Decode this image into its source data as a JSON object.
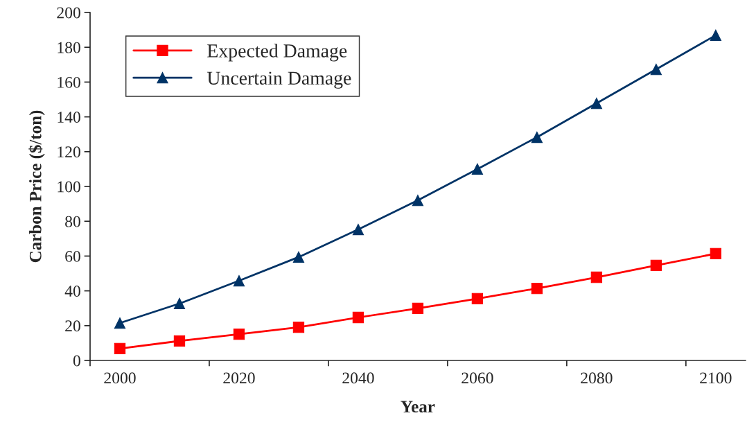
{
  "chart_data": {
    "type": "line",
    "xlabel": "Year",
    "ylabel": "Carbon Price ($/ton)",
    "categories": [
      "2000",
      null,
      "2020",
      null,
      "2040",
      null,
      "2060",
      null,
      "2080",
      null,
      "2100"
    ],
    "series": [
      {
        "name": "Expected Damage",
        "color": "#ff0000",
        "marker": "square",
        "values": [
          6.8,
          11.2,
          15.1,
          19.1,
          24.7,
          29.9,
          35.5,
          41.4,
          47.8,
          54.6,
          61.4
        ]
      },
      {
        "name": "Uncertain Damage",
        "color": "#003366",
        "marker": "triangle",
        "values": [
          21.5,
          32.7,
          45.8,
          59.4,
          75.3,
          92,
          110,
          128.3,
          147.8,
          167.3,
          186.9
        ]
      }
    ],
    "ylim": [
      0,
      200
    ],
    "yticks": [
      0,
      20,
      40,
      60,
      80,
      100,
      120,
      140,
      160,
      180,
      200
    ],
    "grid": false,
    "legend": "top left",
    "line_style": "solid"
  }
}
